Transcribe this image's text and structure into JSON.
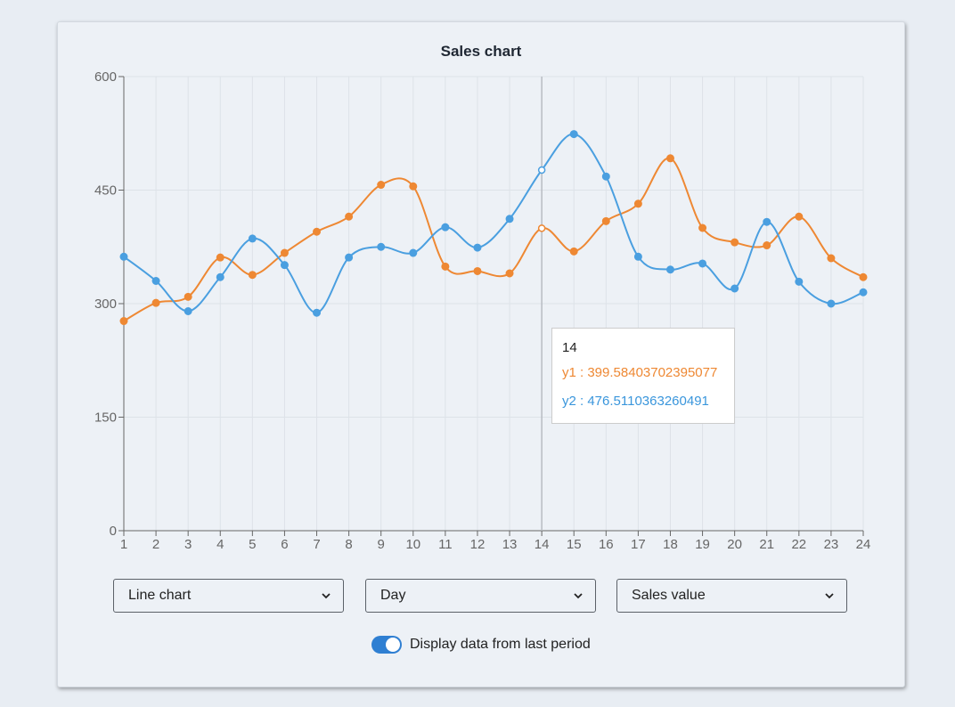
{
  "colors": {
    "series1": "#ee8833",
    "series2": "#4a9fe0",
    "accent": "#2f7fd2"
  },
  "chart_data": {
    "type": "line",
    "title": "Sales chart",
    "x": [
      1,
      2,
      3,
      4,
      5,
      6,
      7,
      8,
      9,
      10,
      11,
      12,
      13,
      14,
      15,
      16,
      17,
      18,
      19,
      20,
      21,
      22,
      23,
      24
    ],
    "ylim": [
      0,
      600
    ],
    "yticks": [
      0,
      150,
      300,
      450,
      600
    ],
    "grid": true,
    "smooth": true,
    "series": [
      {
        "name": "y1",
        "color": "#ee8833",
        "values": [
          277,
          301,
          309,
          361,
          338,
          367,
          395,
          415,
          457,
          455,
          349,
          343,
          340,
          399.58403702395077,
          369,
          409,
          432,
          492,
          400,
          381,
          377,
          415,
          360,
          335
        ]
      },
      {
        "name": "y2",
        "color": "#4a9fe0",
        "values": [
          362,
          330,
          290,
          335,
          386,
          351,
          288,
          361,
          375,
          367,
          401,
          374,
          412,
          476.5110363260491,
          524,
          468,
          362,
          345,
          353,
          320,
          408,
          329,
          300,
          315
        ]
      }
    ],
    "tooltip": {
      "x": "14",
      "rows": [
        {
          "label": "y1 : 399.58403702395077"
        },
        {
          "label": "y2 : 476.5110363260491"
        }
      ]
    }
  },
  "controls": {
    "chart_type": "Line chart",
    "period": "Day",
    "metric": "Sales value",
    "toggle_label": "Display data from last period",
    "toggle_on": true
  }
}
